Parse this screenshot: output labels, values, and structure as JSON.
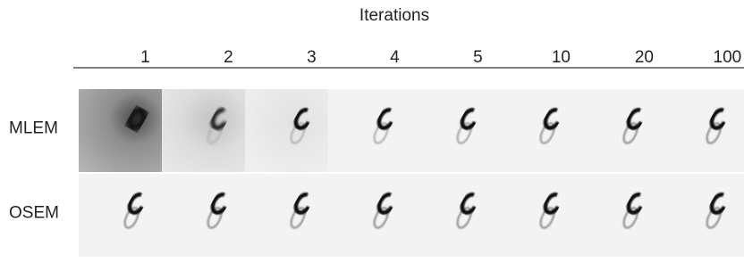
{
  "header": {
    "title": "Iterations"
  },
  "columns": [
    "1",
    "2",
    "3",
    "4",
    "5",
    "10",
    "20",
    "100"
  ],
  "rows": [
    "MLEM",
    "OSEM"
  ]
}
